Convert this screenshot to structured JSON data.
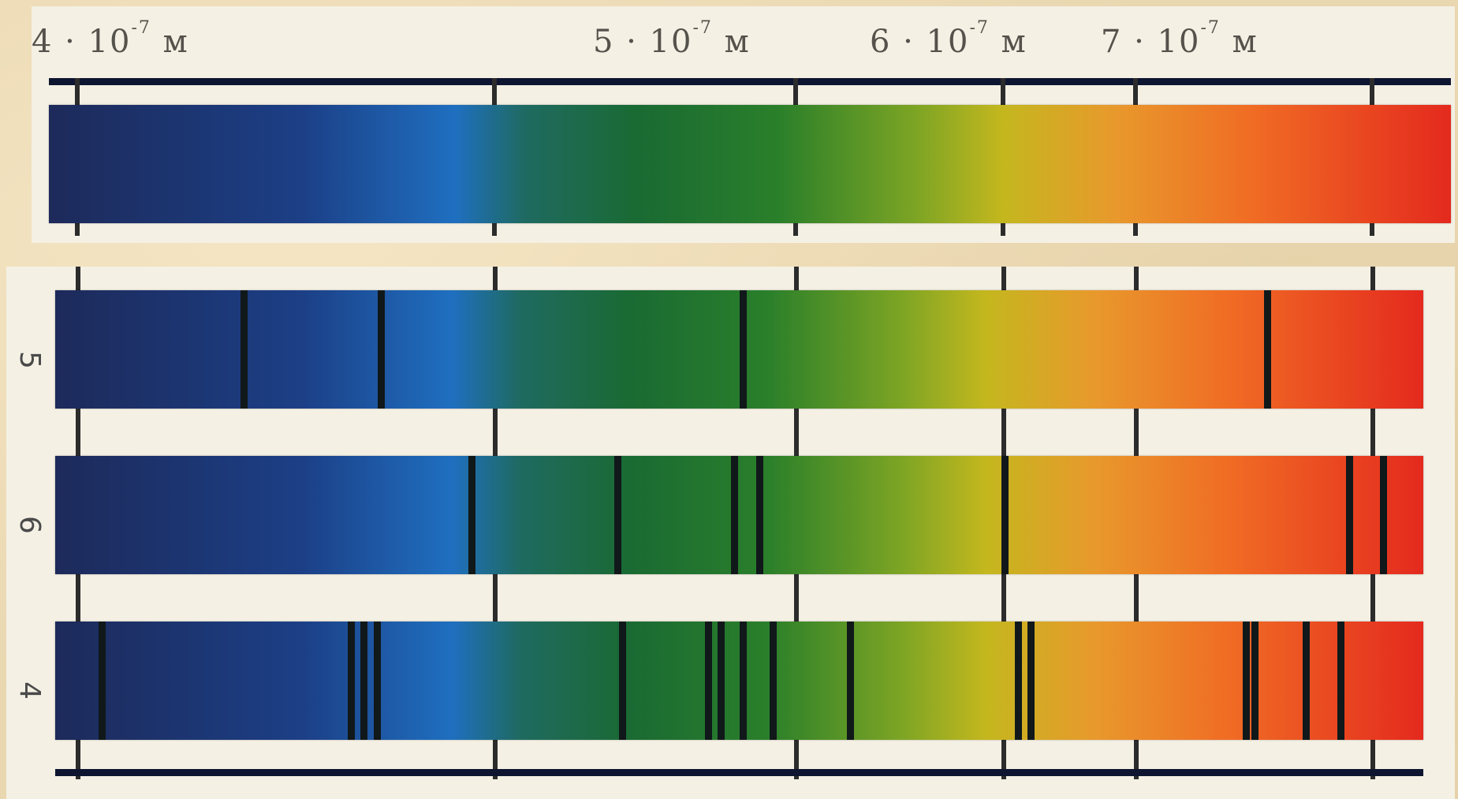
{
  "axis": {
    "labels": [
      {
        "mantissa": "4 · 10",
        "exponent": "-7",
        "unit": "м"
      },
      {
        "mantissa": "5 · 10",
        "exponent": "-7",
        "unit": "м"
      },
      {
        "mantissa": "6 · 10",
        "exponent": "-7",
        "unit": "м"
      },
      {
        "mantissa": "7 · 10",
        "exponent": "-7",
        "unit": "м"
      }
    ]
  },
  "spectra": [
    {
      "label": "",
      "absorption_lines_m": []
    },
    {
      "label": "5",
      "absorption_lines_m": [
        4.37e-07,
        4.69e-07,
        5.53e-07,
        6.75e-07
      ]
    },
    {
      "label": "6",
      "absorption_lines_m": [
        4.9e-07,
        5.24e-07,
        5.51e-07,
        5.57e-07,
        6.14e-07,
        6.94e-07,
        7.02e-07
      ]
    },
    {
      "label": "4",
      "absorption_lines_m": [
        4.04e-07,
        4.62e-07,
        4.65e-07,
        4.68e-07,
        5.25e-07,
        5.45e-07,
        5.48e-07,
        5.53e-07,
        5.6e-07,
        5.78e-07,
        6.17e-07,
        6.2e-07,
        6.7e-07,
        6.72e-07,
        6.84e-07,
        6.92e-07
      ]
    }
  ]
}
